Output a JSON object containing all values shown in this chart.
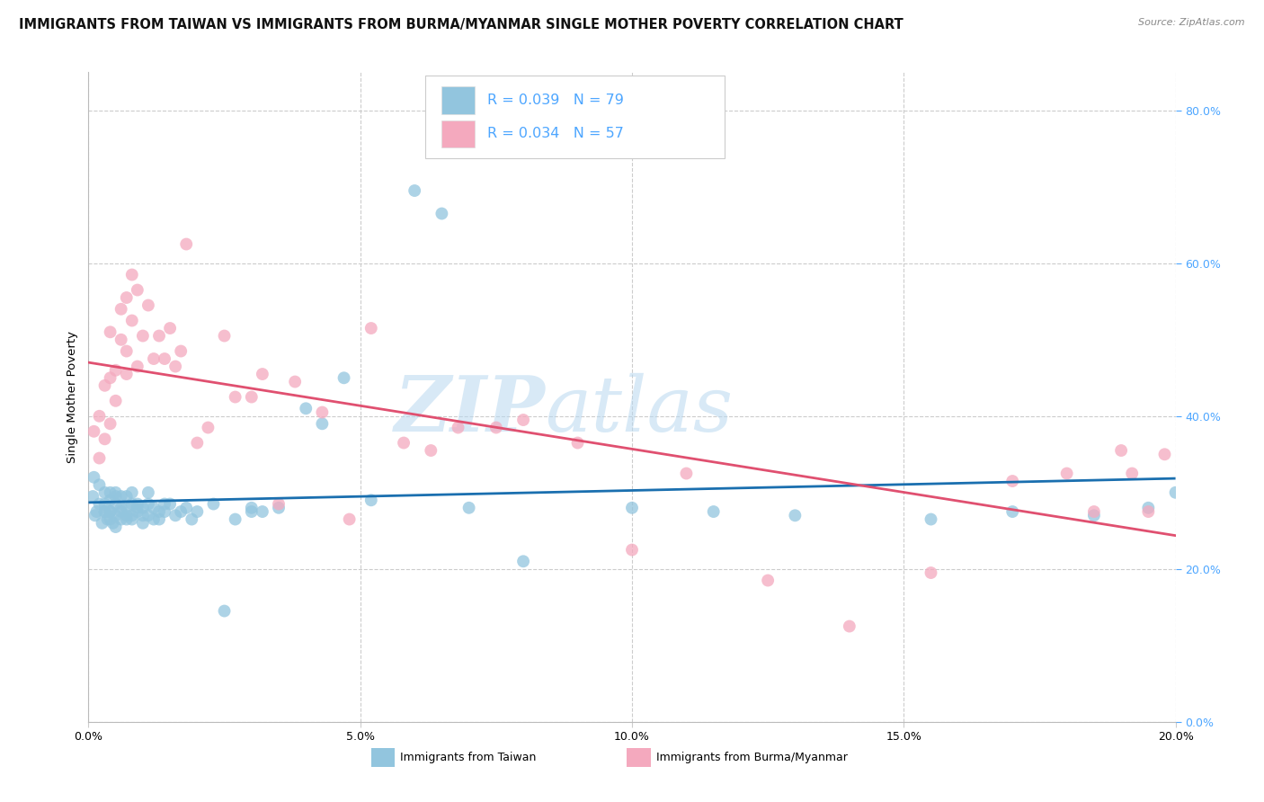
{
  "title": "IMMIGRANTS FROM TAIWAN VS IMMIGRANTS FROM BURMA/MYANMAR SINGLE MOTHER POVERTY CORRELATION CHART",
  "source": "Source: ZipAtlas.com",
  "ylabel": "Single Mother Poverty",
  "legend_label_1": "Immigrants from Taiwan",
  "legend_label_2": "Immigrants from Burma/Myanmar",
  "r1": 0.039,
  "n1": 79,
  "r2": 0.034,
  "n2": 57,
  "color1": "#92c5de",
  "color2": "#f4a9be",
  "trend1_color": "#1a6faf",
  "trend2_color": "#e05070",
  "right_axis_color": "#4da6ff",
  "legend_text_color": "#4da6ff",
  "xlim": [
    0.0,
    0.2
  ],
  "ylim": [
    0.0,
    0.85
  ],
  "taiwan_x": [
    0.0008,
    0.001,
    0.0012,
    0.0015,
    0.002,
    0.002,
    0.0025,
    0.003,
    0.003,
    0.003,
    0.003,
    0.0035,
    0.004,
    0.004,
    0.004,
    0.004,
    0.004,
    0.0045,
    0.005,
    0.005,
    0.005,
    0.005,
    0.005,
    0.006,
    0.006,
    0.006,
    0.006,
    0.007,
    0.007,
    0.007,
    0.007,
    0.008,
    0.008,
    0.008,
    0.008,
    0.009,
    0.009,
    0.009,
    0.01,
    0.01,
    0.01,
    0.011,
    0.011,
    0.011,
    0.012,
    0.012,
    0.013,
    0.013,
    0.014,
    0.014,
    0.015,
    0.016,
    0.017,
    0.018,
    0.019,
    0.02,
    0.023,
    0.025,
    0.027,
    0.03,
    0.03,
    0.032,
    0.035,
    0.04,
    0.043,
    0.047,
    0.052,
    0.06,
    0.065,
    0.07,
    0.08,
    0.1,
    0.115,
    0.13,
    0.155,
    0.17,
    0.185,
    0.195,
    0.2
  ],
  "taiwan_y": [
    0.295,
    0.32,
    0.27,
    0.275,
    0.285,
    0.31,
    0.26,
    0.275,
    0.3,
    0.275,
    0.285,
    0.265,
    0.29,
    0.3,
    0.275,
    0.265,
    0.275,
    0.26,
    0.285,
    0.27,
    0.255,
    0.295,
    0.3,
    0.28,
    0.275,
    0.265,
    0.295,
    0.27,
    0.265,
    0.28,
    0.295,
    0.285,
    0.27,
    0.265,
    0.3,
    0.28,
    0.285,
    0.275,
    0.28,
    0.26,
    0.27,
    0.285,
    0.3,
    0.27,
    0.28,
    0.265,
    0.275,
    0.265,
    0.275,
    0.285,
    0.285,
    0.27,
    0.275,
    0.28,
    0.265,
    0.275,
    0.285,
    0.145,
    0.265,
    0.28,
    0.275,
    0.275,
    0.28,
    0.41,
    0.39,
    0.45,
    0.29,
    0.695,
    0.665,
    0.28,
    0.21,
    0.28,
    0.275,
    0.27,
    0.265,
    0.275,
    0.27,
    0.28,
    0.3
  ],
  "burma_x": [
    0.001,
    0.002,
    0.002,
    0.003,
    0.003,
    0.004,
    0.004,
    0.004,
    0.005,
    0.005,
    0.006,
    0.006,
    0.007,
    0.007,
    0.007,
    0.008,
    0.008,
    0.009,
    0.009,
    0.01,
    0.011,
    0.012,
    0.013,
    0.014,
    0.015,
    0.016,
    0.017,
    0.018,
    0.02,
    0.022,
    0.025,
    0.027,
    0.03,
    0.032,
    0.035,
    0.038,
    0.043,
    0.048,
    0.052,
    0.058,
    0.063,
    0.068,
    0.075,
    0.08,
    0.09,
    0.1,
    0.11,
    0.125,
    0.14,
    0.155,
    0.17,
    0.18,
    0.185,
    0.19,
    0.192,
    0.195,
    0.198
  ],
  "burma_y": [
    0.38,
    0.4,
    0.345,
    0.37,
    0.44,
    0.39,
    0.45,
    0.51,
    0.42,
    0.46,
    0.5,
    0.54,
    0.455,
    0.555,
    0.485,
    0.525,
    0.585,
    0.465,
    0.565,
    0.505,
    0.545,
    0.475,
    0.505,
    0.475,
    0.515,
    0.465,
    0.485,
    0.625,
    0.365,
    0.385,
    0.505,
    0.425,
    0.425,
    0.455,
    0.285,
    0.445,
    0.405,
    0.265,
    0.515,
    0.365,
    0.355,
    0.385,
    0.385,
    0.395,
    0.365,
    0.225,
    0.325,
    0.185,
    0.125,
    0.195,
    0.315,
    0.325,
    0.275,
    0.355,
    0.325,
    0.275,
    0.35
  ],
  "watermark_zip": "ZIP",
  "watermark_atlas": "atlas",
  "background_color": "#ffffff",
  "grid_color": "#cccccc"
}
